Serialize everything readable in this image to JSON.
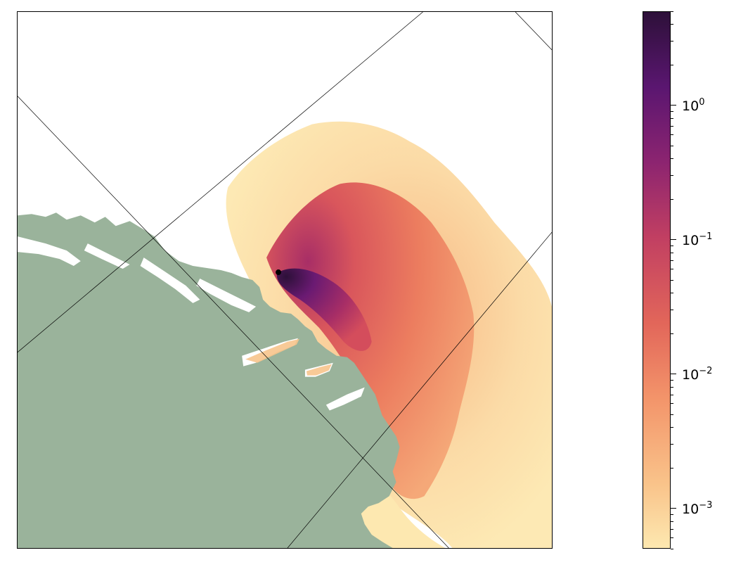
{
  "map": {
    "land_color": "#9ab39b",
    "sea_color": "#ffffff",
    "source_marker_color": "#000000",
    "palette": [
      "#fde8b0",
      "#f9c38a",
      "#f3946a",
      "#e2665a",
      "#c13f62",
      "#8c2470",
      "#5a1670",
      "#2d1039"
    ]
  },
  "colorbar": {
    "scale": "log",
    "range": [
      0.0005,
      5
    ],
    "colormap": "magma-like (light yellow → dark purple)",
    "ticks": [
      {
        "base": "10",
        "exp": "0",
        "value": 1
      },
      {
        "base": "10",
        "exp": "−1",
        "value": 0.1
      },
      {
        "base": "10",
        "exp": "−2",
        "value": 0.01
      },
      {
        "base": "10",
        "exp": "−3",
        "value": 0.001
      }
    ]
  }
}
